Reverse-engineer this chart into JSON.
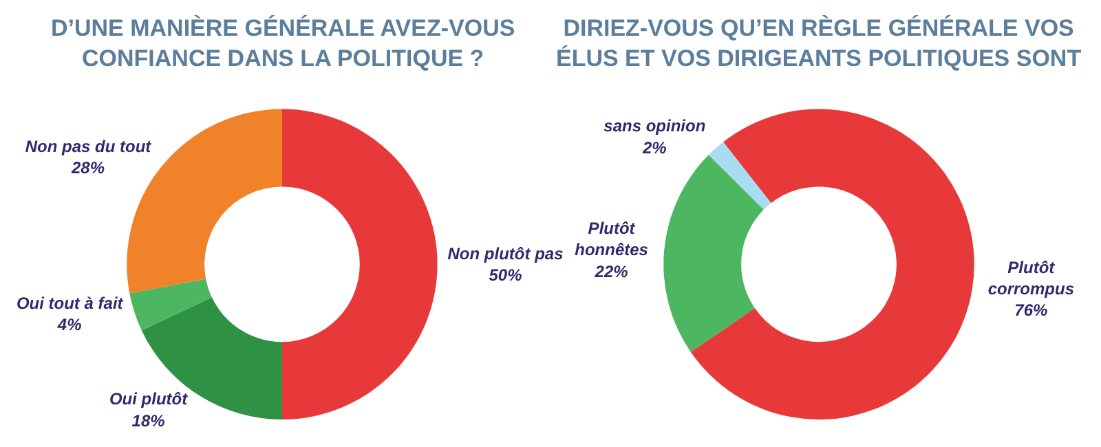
{
  "chart_data": [
    {
      "type": "donut",
      "title": "D’UNE MANIÈRE GÉNÉRALE AVEZ-VOUS\nCONFIANCE DANS LA POLITIQUE ?",
      "categories": [
        "Non plutôt pas",
        "Oui plutôt",
        "Oui tout à fait",
        "Non pas du tout"
      ],
      "values": [
        50,
        18,
        4,
        28
      ],
      "value_labels": [
        "50%",
        "18%",
        "4%",
        "28%"
      ],
      "colors": [
        "#e8393a",
        "#2e9144",
        "#4cb661",
        "#f0822a"
      ]
    },
    {
      "type": "donut",
      "title": "DIRIEZ-VOUS QU’EN RÈGLE GÉNÉRALE VOS\nÉLUS ET VOS DIRIGEANTS POLITIQUES SONT",
      "categories": [
        "Plutôt\ncorrompus",
        "Plutôt\nhonnêtes",
        "sans opinion"
      ],
      "values": [
        76,
        22,
        2
      ],
      "value_labels": [
        "76%",
        "22%",
        "2%"
      ],
      "colors": [
        "#e8393a",
        "#4cb661",
        "#a8dcf0"
      ]
    }
  ]
}
